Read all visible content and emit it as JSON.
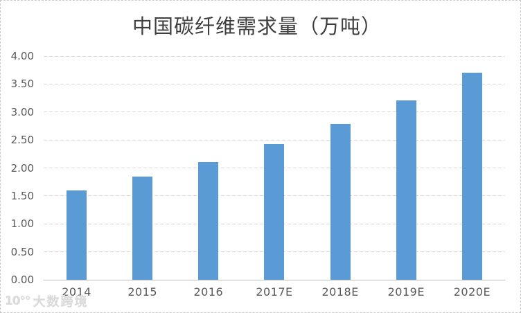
{
  "chart_data": {
    "type": "bar",
    "title": "中国碳纤维需求量（万吨）",
    "categories": [
      "2014",
      "2015",
      "2016",
      "2017E",
      "2018E",
      "2019E",
      "2020E"
    ],
    "values": [
      1.6,
      1.85,
      2.11,
      2.43,
      2.79,
      3.21,
      3.7
    ],
    "xlabel": "",
    "ylabel": "",
    "ylim": [
      0,
      4
    ],
    "ytick_step": 0.5,
    "ytick_labels": [
      "4.00",
      "3.50",
      "3.00",
      "2.50",
      "2.00",
      "1.50",
      "1.00",
      "0.50",
      "0.00"
    ],
    "grid": true,
    "legend": false,
    "bar_color": "#5B9BD5"
  },
  "watermark": {
    "logo": "10°°",
    "text": "大数跨境"
  },
  "colors": {
    "bar": "#5B9BD5",
    "title": "#3F3F3F",
    "axis_label": "#595959",
    "gridline": "#D9D9D9",
    "axis_line": "#BFBFBF",
    "background": "#FFFFFF",
    "canvas_border": "#C9C9C9",
    "watermark": "#D9D9D9"
  }
}
